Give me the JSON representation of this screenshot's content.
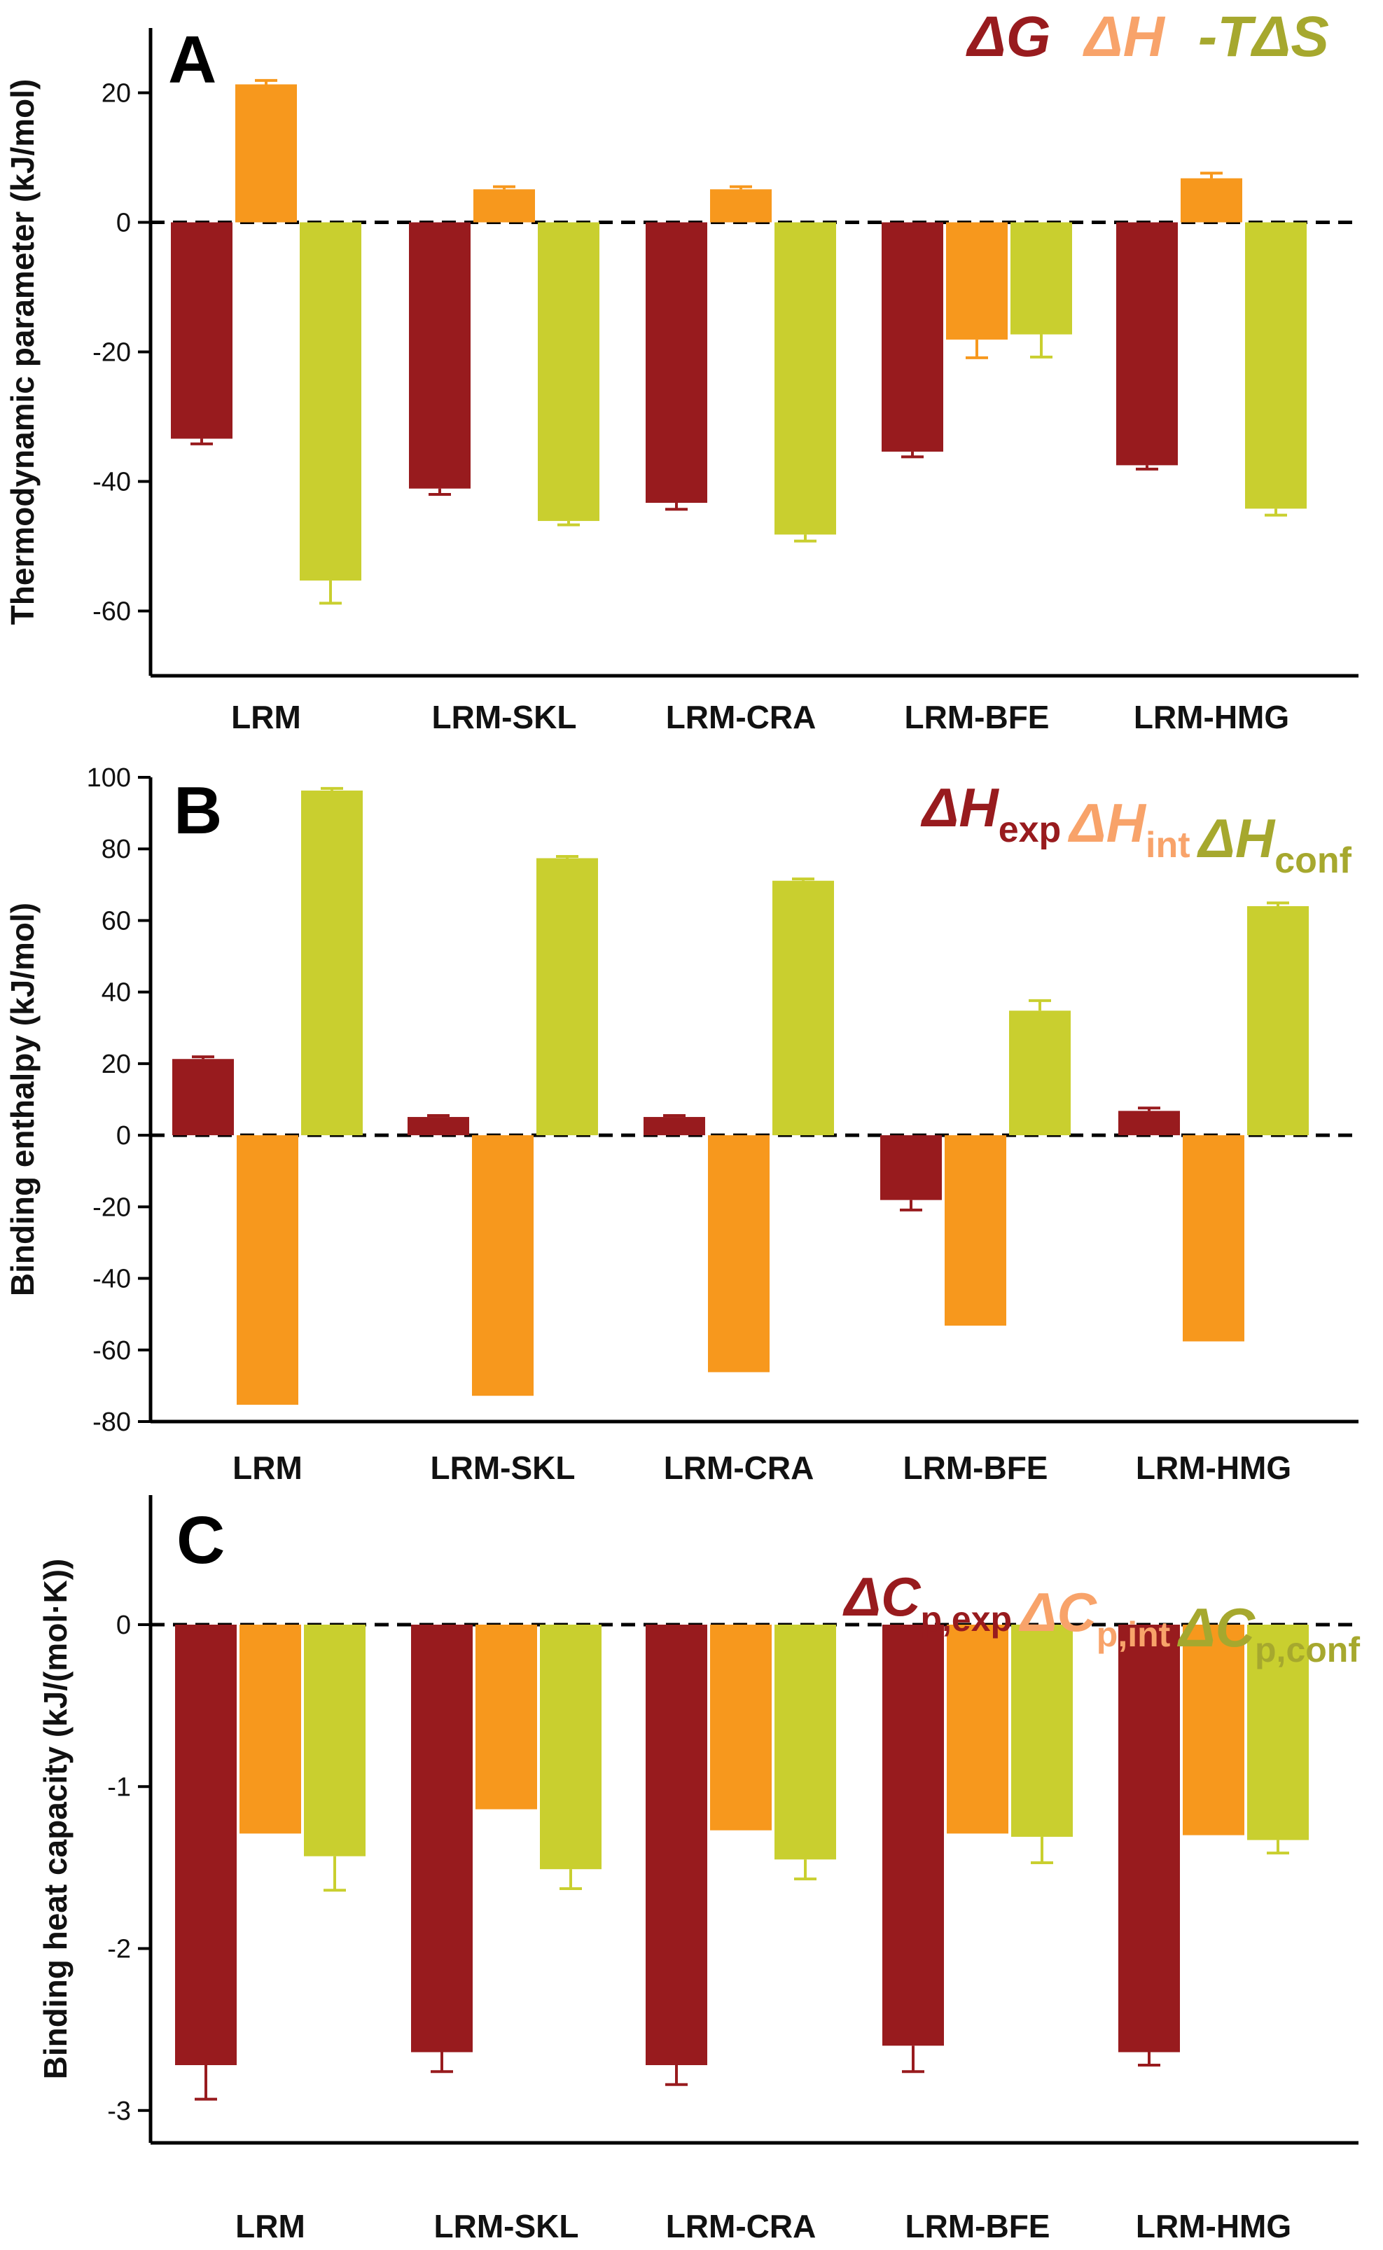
{
  "colors": {
    "series1": "#981b1e",
    "series2": "#f7981d",
    "series3": "#c9cf2f",
    "legend1": "#981b1e",
    "legend2": "#f8a36a",
    "legend3": "#a6a82e"
  },
  "chart_data": [
    {
      "type": "bar",
      "panel": "A",
      "ylabel": "Thermodynamic parameter (kJ/mol)",
      "ylim": [
        -70,
        30
      ],
      "yticks": [
        20,
        0,
        -20,
        -40,
        -60
      ],
      "categories": [
        "LRM",
        "LRM-SKL",
        "LRM-CRA",
        "LRM-BFE",
        "LRM-HMG"
      ],
      "legend": [
        {
          "sym": "Δ",
          "main": "G",
          "sub": ""
        },
        {
          "sym": "Δ",
          "main": "H",
          "sub": ""
        },
        {
          "sym": "-TΔ",
          "main": "S",
          "sub": ""
        }
      ],
      "series": [
        {
          "name": "ΔG",
          "values": [
            -33.4,
            -41.1,
            -43.3,
            -35.4,
            -37.5
          ],
          "errors": [
            0.8,
            0.9,
            1.0,
            0.8,
            0.6
          ]
        },
        {
          "name": "ΔH",
          "values": [
            21.3,
            5.1,
            5.1,
            -18.1,
            6.8
          ],
          "errors": [
            0.6,
            0.4,
            0.4,
            2.8,
            0.8
          ]
        },
        {
          "name": "-TΔS",
          "values": [
            -55.3,
            -46.1,
            -48.2,
            -17.3,
            -44.2
          ],
          "errors": [
            3.5,
            0.6,
            1.0,
            3.5,
            1.0
          ]
        }
      ]
    },
    {
      "type": "bar",
      "panel": "B",
      "ylabel": "Binding enthalpy (kJ/mol)",
      "ylim": [
        -80,
        100
      ],
      "yticks": [
        100,
        80,
        60,
        40,
        20,
        0,
        -20,
        -40,
        -60,
        -80
      ],
      "categories": [
        "LRM",
        "LRM-SKL",
        "LRM-CRA",
        "LRM-BFE",
        "LRM-HMG"
      ],
      "legend": [
        {
          "sym": "Δ",
          "main": "H",
          "sub": "exp"
        },
        {
          "sym": "Δ",
          "main": "H",
          "sub": "int"
        },
        {
          "sym": "Δ",
          "main": "H",
          "sub": "conf"
        }
      ],
      "series": [
        {
          "name": "ΔHexp",
          "values": [
            21.3,
            5.1,
            5.1,
            -18.1,
            6.8
          ],
          "errors": [
            0.6,
            0.4,
            0.4,
            2.8,
            0.8
          ]
        },
        {
          "name": "ΔHint",
          "values": [
            -75.3,
            -72.8,
            -66.2,
            -53.2,
            -57.6
          ],
          "errors": [
            0,
            0,
            0,
            0,
            0
          ]
        },
        {
          "name": "ΔHconf",
          "values": [
            96.3,
            77.4,
            71.1,
            34.8,
            64.0
          ],
          "errors": [
            0.6,
            0.5,
            0.5,
            2.8,
            0.9
          ]
        }
      ]
    },
    {
      "type": "bar",
      "panel": "C",
      "ylabel": "Binding heat capacity (kJ/(mol·K))",
      "ylim": [
        -3.2,
        0.8
      ],
      "yticks": [
        0,
        -1,
        -2,
        -3
      ],
      "categories": [
        "LRM",
        "LRM-SKL",
        "LRM-CRA",
        "LRM-BFE",
        "LRM-HMG"
      ],
      "legend": [
        {
          "sym": "Δ",
          "main": "C",
          "sub": "p,exp"
        },
        {
          "sym": "Δ",
          "main": "C",
          "sub": "p,int"
        },
        {
          "sym": "Δ",
          "main": "C",
          "sub": "p,conf"
        }
      ],
      "series": [
        {
          "name": "ΔCp,exp",
          "values": [
            -2.72,
            -2.64,
            -2.72,
            -2.6,
            -2.64
          ],
          "errors": [
            0.21,
            0.12,
            0.12,
            0.16,
            0.08
          ]
        },
        {
          "name": "ΔCp,int",
          "values": [
            -1.29,
            -1.14,
            -1.27,
            -1.29,
            -1.3
          ],
          "errors": [
            0,
            0,
            0,
            0,
            0
          ]
        },
        {
          "name": "ΔCp,conf",
          "values": [
            -1.43,
            -1.51,
            -1.45,
            -1.31,
            -1.33
          ],
          "errors": [
            0.21,
            0.12,
            0.12,
            0.16,
            0.08
          ]
        }
      ]
    }
  ]
}
